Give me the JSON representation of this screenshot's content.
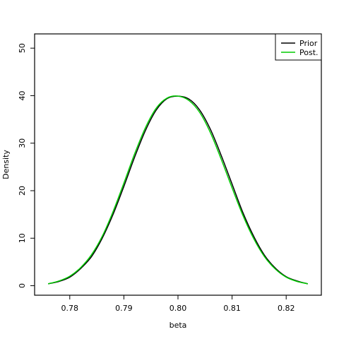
{
  "chart_data": {
    "type": "line",
    "title": "",
    "xlabel": "beta",
    "ylabel": "Density",
    "xlim": [
      0.7735,
      0.8265
    ],
    "ylim": [
      -2,
      53
    ],
    "x_ticks": [
      0.78,
      0.79,
      0.8,
      0.81,
      0.82
    ],
    "x_tick_labels": [
      "0.78",
      "0.79",
      "0.80",
      "0.81",
      "0.82"
    ],
    "y_ticks": [
      0,
      10,
      20,
      30,
      40,
      50
    ],
    "y_tick_labels": [
      "0",
      "10",
      "20",
      "30",
      "40",
      "50"
    ],
    "grid": false,
    "legend_position": "top-right",
    "series": [
      {
        "name": "Prior",
        "color": "#000000",
        "x": [
          0.776,
          0.778,
          0.78,
          0.782,
          0.784,
          0.786,
          0.788,
          0.79,
          0.792,
          0.794,
          0.796,
          0.798,
          0.8,
          0.802,
          0.804,
          0.806,
          0.808,
          0.81,
          0.812,
          0.814,
          0.816,
          0.818,
          0.82,
          0.822,
          0.824
        ],
        "y": [
          0.4,
          0.9,
          1.8,
          3.6,
          6.1,
          10.0,
          15.0,
          20.9,
          27.1,
          32.7,
          37.0,
          39.4,
          39.9,
          39.3,
          37.0,
          32.9,
          27.4,
          21.4,
          15.4,
          10.4,
          6.4,
          3.7,
          1.9,
          1.0,
          0.4
        ]
      },
      {
        "name": "Post.",
        "color": "#00cc00",
        "x": [
          0.776,
          0.778,
          0.78,
          0.782,
          0.784,
          0.786,
          0.788,
          0.79,
          0.792,
          0.794,
          0.796,
          0.798,
          0.8,
          0.802,
          0.804,
          0.806,
          0.808,
          0.81,
          0.812,
          0.814,
          0.816,
          0.818,
          0.82,
          0.822,
          0.824
        ],
        "y": [
          0.4,
          1.0,
          2.0,
          3.8,
          6.5,
          10.4,
          15.6,
          21.6,
          27.8,
          33.3,
          37.4,
          39.5,
          39.9,
          39.0,
          36.5,
          32.2,
          26.6,
          20.6,
          14.8,
          9.9,
          6.1,
          3.5,
          1.8,
          0.9,
          0.4
        ]
      }
    ]
  }
}
